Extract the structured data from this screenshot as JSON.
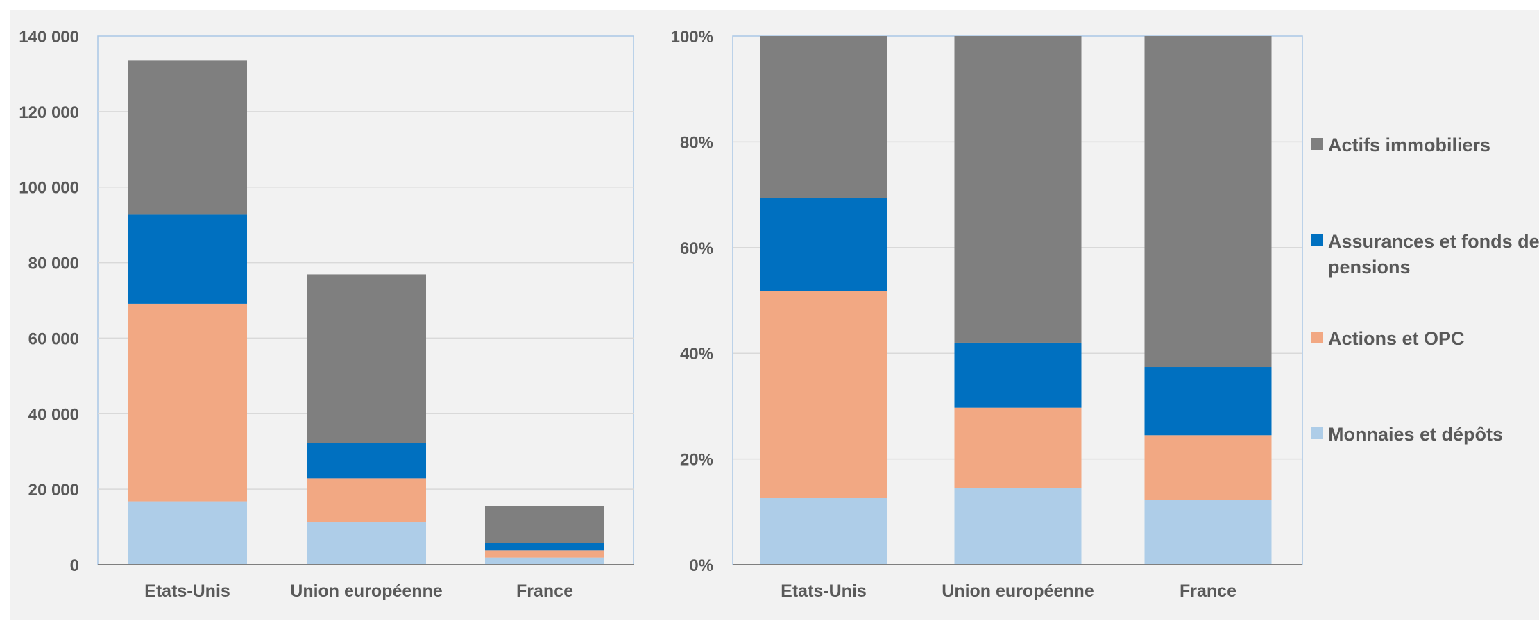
{
  "chart_data": [
    {
      "type": "bar",
      "stacked": true,
      "title": "",
      "xlabel": "",
      "ylabel": "",
      "categories": [
        "Etats-Unis",
        "Union européenne",
        "France"
      ],
      "ylim": [
        0,
        140000
      ],
      "yticks": [
        0,
        20000,
        40000,
        60000,
        80000,
        100000,
        120000,
        140000
      ],
      "ytick_labels": [
        "0",
        "20 000",
        "40 000",
        "60 000",
        "80 000",
        "100 000",
        "120 000",
        "140 000"
      ],
      "grid": true,
      "series": [
        {
          "name": "Monnaies et dépôts",
          "color": "#aecde8",
          "values": [
            16800,
            11200,
            1900
          ]
        },
        {
          "name": "Actions et OPC",
          "color": "#f2a883",
          "values": [
            52300,
            11700,
            1900
          ]
        },
        {
          "name": "Assurances et fonds de pensions",
          "color": "#0070c0",
          "values": [
            23600,
            9400,
            2000
          ]
        },
        {
          "name": "Actifs immobiliers",
          "color": "#7f7f7f",
          "values": [
            40800,
            44600,
            9800
          ]
        }
      ]
    },
    {
      "type": "bar",
      "stacked": true,
      "title": "",
      "xlabel": "",
      "ylabel": "",
      "categories": [
        "Etats-Unis",
        "Union européenne",
        "France"
      ],
      "ylim": [
        0,
        100
      ],
      "yticks": [
        0,
        20,
        40,
        60,
        80,
        100
      ],
      "ytick_labels": [
        "0%",
        "20%",
        "40%",
        "60%",
        "80%",
        "100%"
      ],
      "grid": true,
      "legend_position": "right",
      "series": [
        {
          "name": "Monnaies et dépôts",
          "color": "#aecde8",
          "values": [
            12.6,
            14.5,
            12.3
          ]
        },
        {
          "name": "Actions et OPC",
          "color": "#f2a883",
          "values": [
            39.2,
            15.2,
            12.2
          ]
        },
        {
          "name": "Assurances et fonds de pensions",
          "color": "#0070c0",
          "values": [
            17.6,
            12.3,
            12.9
          ]
        },
        {
          "name": "Actifs immobiliers",
          "color": "#7f7f7f",
          "values": [
            30.6,
            58.0,
            62.6
          ]
        }
      ]
    }
  ],
  "legend": {
    "items": [
      {
        "lines": [
          "Actifs immobiliers"
        ],
        "color": "#7f7f7f"
      },
      {
        "lines": [
          "Assurances et fonds de",
          "pensions"
        ],
        "color": "#0070c0"
      },
      {
        "lines": [
          "Actions et OPC"
        ],
        "color": "#f2a883"
      },
      {
        "lines": [
          "Monnaies et dépôts"
        ],
        "color": "#aecde8"
      }
    ]
  }
}
